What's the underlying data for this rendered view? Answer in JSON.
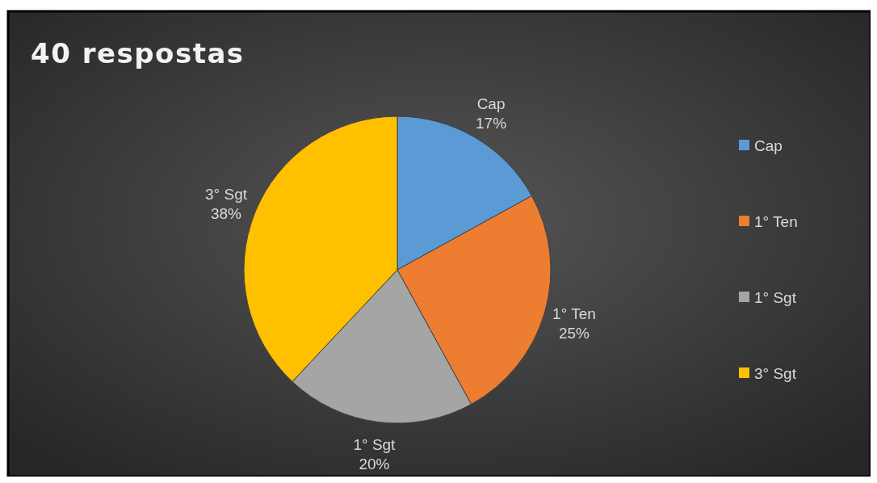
{
  "chart_data": {
    "type": "pie",
    "title": "40 respostas",
    "categories": [
      "Cap",
      "1° Ten",
      "1° Sgt",
      "3° Sgt"
    ],
    "values": [
      17,
      25,
      20,
      38
    ],
    "value_labels": [
      "17%",
      "25%",
      "20%",
      "38%"
    ],
    "colors": [
      "#5b9bd5",
      "#ed7d31",
      "#a5a5a5",
      "#ffc000"
    ],
    "legend": "right"
  }
}
